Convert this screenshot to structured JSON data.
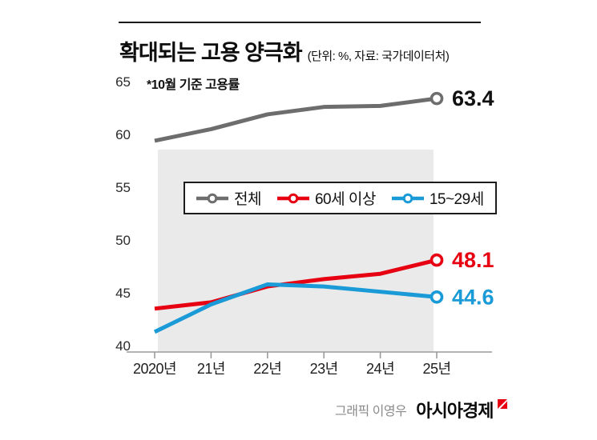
{
  "header": {
    "title": "확대되는 고용 양극화",
    "unit_source": "(단위: %, 자료: 국가데이터처)"
  },
  "note": "*10월 기준 고용률",
  "chart_data": {
    "type": "line",
    "title": "확대되는 고용 양극화",
    "unit": "%",
    "source": "국가데이터처",
    "footnote": "*10월 기준 고용률",
    "x_categories": [
      "2020년",
      "21년",
      "22년",
      "23년",
      "24년",
      "25년"
    ],
    "ylim": [
      40,
      65
    ],
    "yticks": [
      40,
      45,
      50,
      55,
      60,
      65
    ],
    "grid": false,
    "legend_position": "inside-top-center",
    "series": [
      {
        "name": "전체",
        "color": "#6d6d6d",
        "label_color": "#111111",
        "values": [
          59.4,
          60.5,
          61.9,
          62.6,
          62.7,
          63.4
        ],
        "end_label": "63.4"
      },
      {
        "name": "60세 이상",
        "color": "#e60012",
        "label_color": "#e60012",
        "values": [
          43.5,
          44.1,
          45.6,
          46.3,
          46.8,
          48.1
        ],
        "end_label": "48.1"
      },
      {
        "name": "15~29세",
        "color": "#1a9ad6",
        "label_color": "#1a9ad6",
        "values": [
          41.3,
          43.9,
          45.8,
          45.6,
          45.1,
          44.6
        ],
        "end_label": "44.6"
      }
    ]
  },
  "footer": {
    "credit": "그래픽 이영우",
    "brand": "아시아경제"
  },
  "colors": {
    "band": "#eaeaea",
    "axis": "#9b9b9b",
    "brand_red": "#e60012"
  }
}
